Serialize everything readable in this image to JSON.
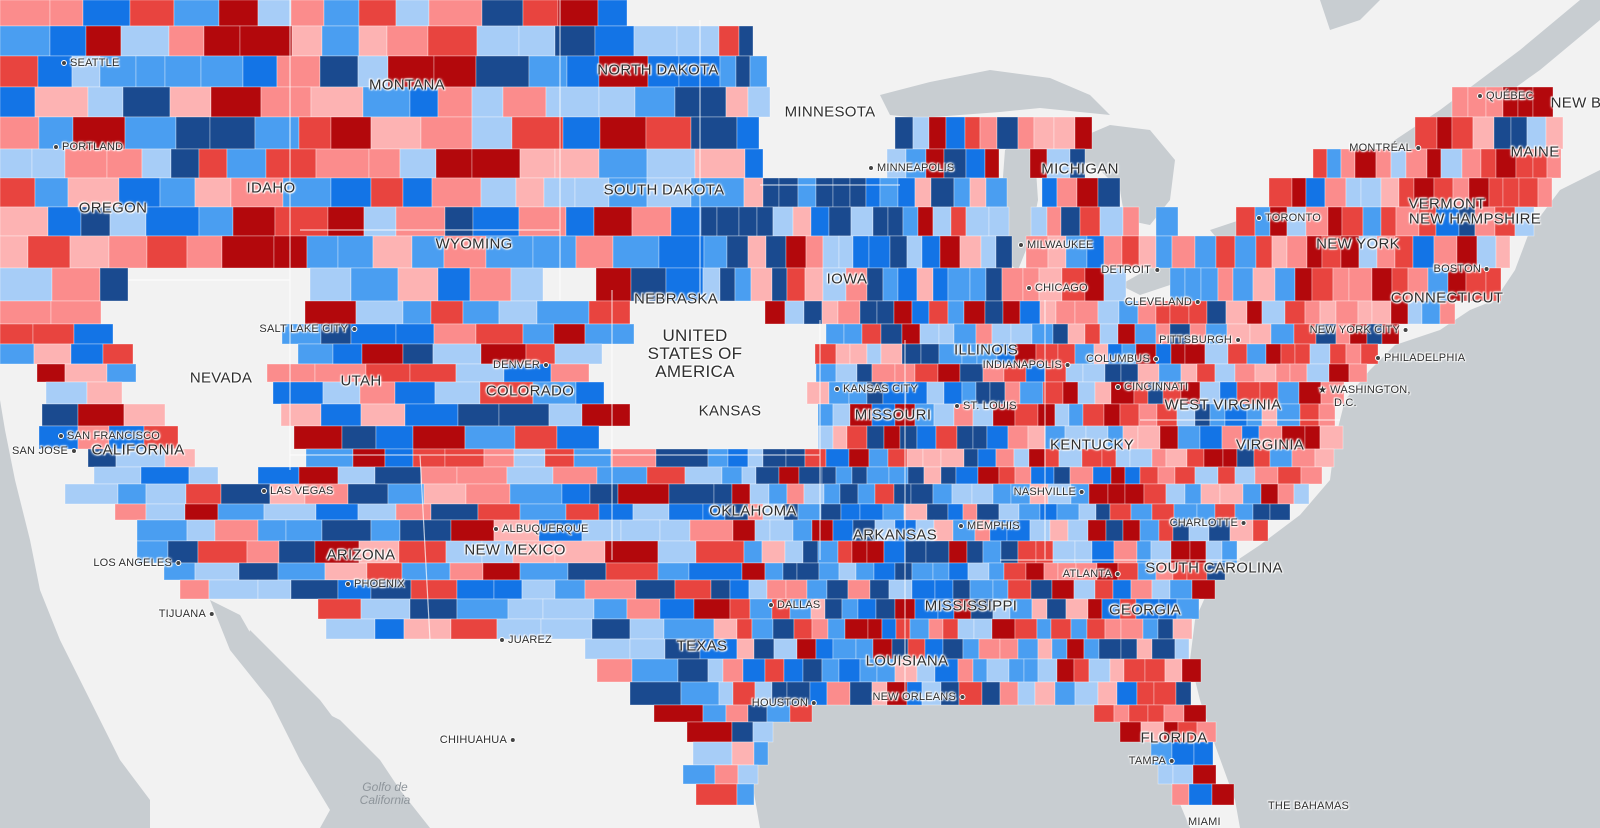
{
  "palette": {
    "water": "#c8cdd1",
    "land": "#f2f2f2",
    "border": "#ffffff",
    "classes": [
      "#b3080c",
      "#e8443f",
      "#fb8c8c",
      "#fdb3b3",
      "#a7cdf7",
      "#4a9ef1",
      "#1374e6",
      "#1a4a8f"
    ]
  },
  "states": [
    {
      "id": "montana",
      "label": "MONTANA"
    },
    {
      "id": "north-dakota",
      "label": "NORTH DAKOTA"
    },
    {
      "id": "minnesota",
      "label": "MINNESOTA"
    },
    {
      "id": "south-dakota",
      "label": "SOUTH DAKOTA"
    },
    {
      "id": "idaho",
      "label": "IDAHO"
    },
    {
      "id": "oregon",
      "label": "OREGON"
    },
    {
      "id": "wyoming",
      "label": "WYOMING"
    },
    {
      "id": "nebraska",
      "label": "NEBRASKA"
    },
    {
      "id": "iowa",
      "label": "IOWA"
    },
    {
      "id": "michigan",
      "label": "MICHIGAN"
    },
    {
      "id": "nevada",
      "label": "NEVADA"
    },
    {
      "id": "utah",
      "label": "UTAH"
    },
    {
      "id": "colorado",
      "label": "COLORADO"
    },
    {
      "id": "kansas",
      "label": "KANSAS"
    },
    {
      "id": "missouri",
      "label": "MISSOURI"
    },
    {
      "id": "illinois",
      "label": "ILLINOIS"
    },
    {
      "id": "california",
      "label": "CALIFORNIA"
    },
    {
      "id": "kentucky",
      "label": "KENTUCKY"
    },
    {
      "id": "west-virginia",
      "label": "WEST VIRGINIA"
    },
    {
      "id": "virginia",
      "label": "VIRGINIA"
    },
    {
      "id": "oklahoma",
      "label": "OKLAHOMA"
    },
    {
      "id": "arkansas",
      "label": "ARKANSAS"
    },
    {
      "id": "arizona",
      "label": "ARIZONA"
    },
    {
      "id": "new-mexico",
      "label": "NEW MEXICO"
    },
    {
      "id": "mississippi",
      "label": "MISSISSIPPI"
    },
    {
      "id": "georgia",
      "label": "GEORGIA"
    },
    {
      "id": "south-carolina",
      "label": "SOUTH CAROLINA"
    },
    {
      "id": "texas",
      "label": "TEXAS"
    },
    {
      "id": "louisiana",
      "label": "LOUISIANA"
    },
    {
      "id": "florida",
      "label": "FLORIDA"
    },
    {
      "id": "new-york",
      "label": "NEW YORK"
    },
    {
      "id": "connecticut",
      "label": "CONNECTICUT"
    },
    {
      "id": "vermont",
      "label": "VERMONT"
    },
    {
      "id": "new-hampshire",
      "label": "NEW HAMPSHIRE"
    },
    {
      "id": "maine",
      "label": "MAINE"
    },
    {
      "id": "new-brunswick",
      "label": "NEW B"
    }
  ],
  "country_label": [
    "UNITED",
    "STATES OF",
    "AMERICA"
  ],
  "cities": [
    {
      "id": "seattle",
      "label": "SEATTLE"
    },
    {
      "id": "portland",
      "label": "PORTLAND"
    },
    {
      "id": "salt-lake-city",
      "label": "SALT LAKE CITY"
    },
    {
      "id": "denver",
      "label": "DENVER"
    },
    {
      "id": "san-francisco",
      "label": "SAN FRANCISCO"
    },
    {
      "id": "san-jose",
      "label": "SAN JOSE"
    },
    {
      "id": "las-vegas",
      "label": "LAS VEGAS"
    },
    {
      "id": "los-angeles",
      "label": "LOS ANGELES"
    },
    {
      "id": "tijuana",
      "label": "TIJUANA"
    },
    {
      "id": "phoenix",
      "label": "PHOENIX"
    },
    {
      "id": "albuquerque",
      "label": "ALBUQUERQUE"
    },
    {
      "id": "juarez",
      "label": "JUAREZ"
    },
    {
      "id": "chihuahua",
      "label": "CHIHUAHUA"
    },
    {
      "id": "minneapolis",
      "label": "MINNEAPOLIS"
    },
    {
      "id": "milwaukee",
      "label": "MILWAUKEE"
    },
    {
      "id": "chicago",
      "label": "CHICAGO"
    },
    {
      "id": "detroit",
      "label": "DETROIT"
    },
    {
      "id": "cleveland",
      "label": "CLEVELAND"
    },
    {
      "id": "toronto",
      "label": "TORONTO"
    },
    {
      "id": "montreal",
      "label": "MONTRÉAL"
    },
    {
      "id": "quebec",
      "label": "QUÉBEC"
    },
    {
      "id": "boston",
      "label": "BOSTON"
    },
    {
      "id": "new-york-city",
      "label": "NEW YORK CITY"
    },
    {
      "id": "philadelphia",
      "label": "PHILADELPHIA"
    },
    {
      "id": "washington-dc",
      "label": "WASHINGTON,",
      "label2": "D.C."
    },
    {
      "id": "pittsburgh",
      "label": "PITTSBURGH"
    },
    {
      "id": "columbus",
      "label": "COLUMBUS"
    },
    {
      "id": "indianapolis",
      "label": "INDIANAPOLIS"
    },
    {
      "id": "cincinnati",
      "label": "CINCINNATI"
    },
    {
      "id": "kansas-city",
      "label": "KANSAS CITY"
    },
    {
      "id": "st-louis",
      "label": "ST. LOUIS"
    },
    {
      "id": "nashville",
      "label": "NASHVILLE"
    },
    {
      "id": "memphis",
      "label": "MEMPHIS"
    },
    {
      "id": "charlotte",
      "label": "CHARLOTTE"
    },
    {
      "id": "atlanta",
      "label": "ATLANTA"
    },
    {
      "id": "dallas",
      "label": "DALLAS"
    },
    {
      "id": "houston",
      "label": "HOUSTON"
    },
    {
      "id": "new-orleans",
      "label": "NEW ORLEANS"
    },
    {
      "id": "tampa",
      "label": "TAMPA"
    },
    {
      "id": "miami",
      "label": "MIAMI"
    },
    {
      "id": "the-bahamas",
      "label": "THE BAHAMAS"
    }
  ],
  "water_labels": [
    {
      "id": "golfo-de-california",
      "line1": "Golfo de",
      "line2": "California"
    }
  ]
}
